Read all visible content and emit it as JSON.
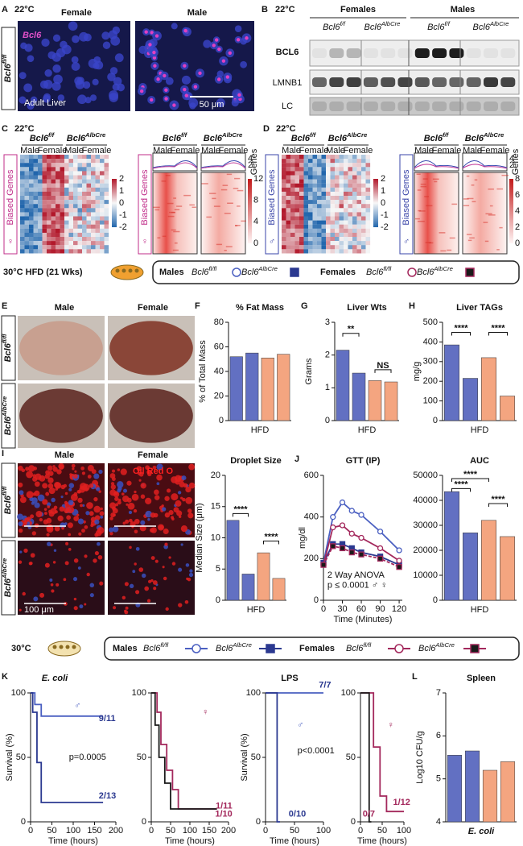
{
  "panels": {
    "A": {
      "letter": "A",
      "temp": "22°C",
      "cols": [
        "Female",
        "Male"
      ],
      "stain": "Bcl6",
      "genotype": {
        "gene": "Bcl6",
        "sup": "fl/fl"
      },
      "tissue": "Adult Liver",
      "scale": "50 μm"
    },
    "B": {
      "letter": "B",
      "temp": "22°C",
      "groups": [
        "Females",
        "Males"
      ],
      "genotypes": [
        {
          "gene": "Bcl6",
          "sup": "f/f"
        },
        {
          "gene": "Bcl6",
          "sup": "AlbCre"
        },
        {
          "gene": "Bcl6",
          "sup": "f/f"
        },
        {
          "gene": "Bcl6",
          "sup": "AlbCre"
        }
      ],
      "rows": [
        "BCL6",
        "LMNB1",
        "LC"
      ]
    },
    "C": {
      "letter": "C",
      "temp": "22°C",
      "genotypes": [
        {
          "gene": "Bcl6",
          "sup": "f/f"
        },
        {
          "gene": "Bcl6",
          "sup": "AlbCre"
        }
      ],
      "sexes": [
        "Male",
        "Female"
      ],
      "side_label": "Biased Genes",
      "symbol": "♀",
      "scale_ticks": [
        2,
        1,
        0,
        -1,
        -2
      ],
      "density_ticks": [
        12,
        8,
        4,
        0
      ],
      "profile_ticks": [
        4,
        2
      ],
      "profile_unit": "Genes"
    },
    "D": {
      "letter": "D",
      "temp": "22°C",
      "genotypes": [
        {
          "gene": "Bcl6",
          "sup": "f/f"
        },
        {
          "gene": "Bcl6",
          "sup": "AlbCre"
        }
      ],
      "sexes": [
        "Male",
        "Female"
      ],
      "side_label": "Biased Genes",
      "symbol": "♂",
      "scale_ticks": [
        2,
        1,
        0,
        -1,
        -2
      ],
      "density_ticks": [
        8,
        6,
        4,
        2,
        0
      ],
      "profile_ticks": [
        4,
        2
      ],
      "profile_unit": "Genes"
    },
    "legend1": {
      "condition": "30°C HFD (21 Wks)",
      "males": "Males",
      "females": "Females",
      "genotypes": [
        {
          "gene": "Bcl6",
          "sup": "fl/fl"
        },
        {
          "gene": "Bcl6",
          "sup": "AlbCre"
        },
        {
          "gene": "Bcl6",
          "sup": "fl/fl"
        },
        {
          "gene": "Bcl6",
          "sup": "AlbCre"
        }
      ]
    },
    "E": {
      "letter": "E",
      "cols": [
        "Male",
        "Female"
      ],
      "rows": [
        {
          "gene": "Bcl6",
          "sup": "fl/fl"
        },
        {
          "gene": "Bcl6",
          "sup": "AlbCre"
        }
      ]
    },
    "I": {
      "letter": "I",
      "cols": [
        "Male",
        "Female"
      ],
      "stain": "Oil Red O",
      "rows": [
        {
          "gene": "Bcl6",
          "sup": "fl/fl"
        },
        {
          "gene": "Bcl6",
          "sup": "AlbCre"
        }
      ],
      "scale": "100 μm"
    },
    "legend2": {
      "condition": "30°C",
      "males": "Males",
      "females": "Females",
      "genotypes": [
        {
          "gene": "Bcl6",
          "sup": "fl/fl"
        },
        {
          "gene": "Bcl6",
          "sup": "AlbCre"
        },
        {
          "gene": "Bcl6",
          "sup": "fl/fl"
        },
        {
          "gene": "Bcl6",
          "sup": "AlbCre"
        }
      ]
    }
  },
  "chart_data": [
    {
      "type": "bar",
      "letter": "F",
      "title": "% Fat Mass",
      "ylabel": "% of Total Mass",
      "xlabel": "HFD",
      "values": [
        52,
        55,
        51,
        54
      ],
      "colors": [
        "#6270c2",
        "#6270c2",
        "#f4a580",
        "#f4a580"
      ],
      "ylim": [
        0,
        80
      ],
      "yticks": [
        0,
        20,
        40,
        60,
        80
      ],
      "annotations": []
    },
    {
      "type": "bar",
      "letter": "G",
      "title": "Liver Wts",
      "ylabel": "Grams",
      "xlabel": "HFD",
      "values": [
        2.15,
        1.45,
        1.22,
        1.18
      ],
      "colors": [
        "#6270c2",
        "#6270c2",
        "#f4a580",
        "#f4a580"
      ],
      "ylim": [
        0,
        3
      ],
      "yticks": [
        0,
        1,
        2,
        3
      ],
      "annotations": [
        "**",
        "NS"
      ]
    },
    {
      "type": "bar",
      "letter": "H",
      "title": "Liver TAGs",
      "ylabel": "mg/g",
      "xlabel": "HFD",
      "values": [
        385,
        215,
        320,
        125
      ],
      "colors": [
        "#6270c2",
        "#6270c2",
        "#f4a580",
        "#f4a580"
      ],
      "ylim": [
        0,
        500
      ],
      "yticks": [
        0,
        100,
        200,
        300,
        400,
        500
      ],
      "annotations": [
        "****",
        "****"
      ]
    },
    {
      "type": "bar",
      "title": "Droplet Size",
      "ylabel": "Median Size (μm)",
      "xlabel": "HFD",
      "values": [
        12.8,
        4.2,
        7.6,
        3.5
      ],
      "colors": [
        "#6270c2",
        "#6270c2",
        "#f4a580",
        "#f4a580"
      ],
      "ylim": [
        0,
        20
      ],
      "yticks": [
        0,
        5,
        10,
        15,
        20
      ],
      "annotations": [
        "****",
        "****"
      ]
    },
    {
      "type": "line",
      "letter": "J",
      "title": "GTT (IP)",
      "ylabel": "mg/dl",
      "xlabel": "Time (Minutes)",
      "markers": true,
      "x": [
        0,
        15,
        30,
        45,
        60,
        90,
        120
      ],
      "xlim": [
        0,
        125
      ],
      "xticks": [
        0,
        30,
        60,
        90,
        120
      ],
      "ylim": [
        0,
        600
      ],
      "yticks": [
        0,
        200,
        400,
        600
      ],
      "series": [
        {
          "values": [
            180,
            400,
            470,
            430,
            410,
            330,
            240
          ],
          "color": "#4a5fc1"
        },
        {
          "values": [
            180,
            270,
            270,
            250,
            230,
            210,
            170
          ],
          "color": "#2b3990"
        },
        {
          "values": [
            170,
            350,
            360,
            320,
            300,
            250,
            190
          ],
          "color": "#a3285c"
        },
        {
          "values": [
            170,
            260,
            250,
            230,
            220,
            200,
            160
          ],
          "color": "#a3285c"
        }
      ],
      "annotations": [
        "2 Way ANOVA",
        "p ≤ 0.0001 ♂ ♀"
      ]
    },
    {
      "type": "bar",
      "title": "AUC",
      "xlabel": "HFD",
      "values": [
        43500,
        27000,
        32000,
        25500
      ],
      "colors": [
        "#6270c2",
        "#6270c2",
        "#f4a580",
        "#f4a580"
      ],
      "ylim": [
        0,
        50000
      ],
      "yticks": [
        0,
        10000,
        20000,
        30000,
        40000,
        50000
      ],
      "annotations": [
        "****",
        "****",
        "****"
      ]
    },
    {
      "type": "line",
      "letter": "K",
      "title": "E. coli",
      "symbol": "♂",
      "ylabel": "Survival (%)",
      "xlabel": "Time (hours)",
      "markers": false,
      "xlim": [
        0,
        200
      ],
      "xticks": [
        0,
        50,
        100,
        150,
        200
      ],
      "ylim": [
        0,
        100
      ],
      "yticks": [
        0,
        50,
        100
      ],
      "series": [
        {
          "x": [
            0,
            10,
            10,
            25,
            25,
            170
          ],
          "values": [
            100,
            100,
            91,
            91,
            82,
            82
          ],
          "color": "#4a5fc1"
        },
        {
          "x": [
            0,
            5,
            5,
            15,
            15,
            25,
            25,
            170
          ],
          "values": [
            100,
            100,
            85,
            85,
            46,
            46,
            15,
            15
          ],
          "color": "#2b3990"
        }
      ],
      "annotations": [
        "9/11",
        "2/13",
        "p=0.0005"
      ]
    },
    {
      "type": "line",
      "symbol": "♀",
      "xlabel": "Time (hours)",
      "markers": false,
      "xlim": [
        0,
        200
      ],
      "xticks": [
        0,
        50,
        100,
        150,
        200
      ],
      "ylim": [
        0,
        100
      ],
      "yticks": [
        0,
        50,
        100
      ],
      "series": [
        {
          "x": [
            0,
            15,
            15,
            25,
            25,
            40,
            40,
            55,
            55,
            70,
            70,
            170
          ],
          "values": [
            100,
            100,
            85,
            85,
            60,
            60,
            40,
            40,
            25,
            25,
            10,
            10
          ],
          "color": "#a3285c"
        },
        {
          "x": [
            0,
            10,
            10,
            20,
            20,
            35,
            35,
            50,
            50,
            170
          ],
          "values": [
            100,
            100,
            75,
            75,
            50,
            50,
            30,
            30,
            10,
            10
          ],
          "color": "#1a1a1a"
        }
      ],
      "annotations": [
        "1/11",
        "1/10"
      ]
    },
    {
      "type": "line",
      "title": "LPS",
      "symbol": "♂",
      "ylabel": "Survival (%)",
      "xlabel": "Time (hours)",
      "markers": false,
      "xlim": [
        0,
        100
      ],
      "xticks": [
        0,
        50,
        100
      ],
      "ylim": [
        0,
        100
      ],
      "yticks": [
        0,
        50,
        100
      ],
      "series": [
        {
          "x": [
            0,
            100
          ],
          "values": [
            100,
            100
          ],
          "color": "#4a5fc1"
        },
        {
          "x": [
            0,
            20,
            20,
            25
          ],
          "values": [
            100,
            100,
            0,
            0
          ],
          "color": "#2b3990"
        }
      ],
      "annotations": [
        "7/7",
        "0/10",
        "p<0.0001"
      ]
    },
    {
      "type": "line",
      "symbol": "♀",
      "xlabel": "Time (hours)",
      "markers": false,
      "xlim": [
        0,
        100
      ],
      "xticks": [
        0,
        50,
        100
      ],
      "ylim": [
        0,
        100
      ],
      "yticks": [
        0,
        50,
        100
      ],
      "series": [
        {
          "x": [
            0,
            30,
            30,
            45,
            45,
            60,
            60,
            100
          ],
          "values": [
            100,
            100,
            58,
            58,
            20,
            20,
            8,
            8
          ],
          "color": "#a3285c"
        },
        {
          "x": [
            0,
            20,
            20,
            25
          ],
          "values": [
            100,
            100,
            0,
            0
          ],
          "color": "#1a1a1a"
        }
      ],
      "annotations": [
        "0/7",
        "1/12"
      ]
    },
    {
      "type": "bar",
      "letter": "L",
      "title": "Spleen",
      "ylabel": "Log10 CFU/g",
      "xlabel": "E. coli",
      "values": [
        5.55,
        5.65,
        5.2,
        5.4
      ],
      "colors": [
        "#6270c2",
        "#6270c2",
        "#f4a580",
        "#f4a580"
      ],
      "ylim": [
        4,
        7
      ],
      "yticks": [
        4,
        5,
        6,
        7
      ],
      "annotations": []
    }
  ]
}
